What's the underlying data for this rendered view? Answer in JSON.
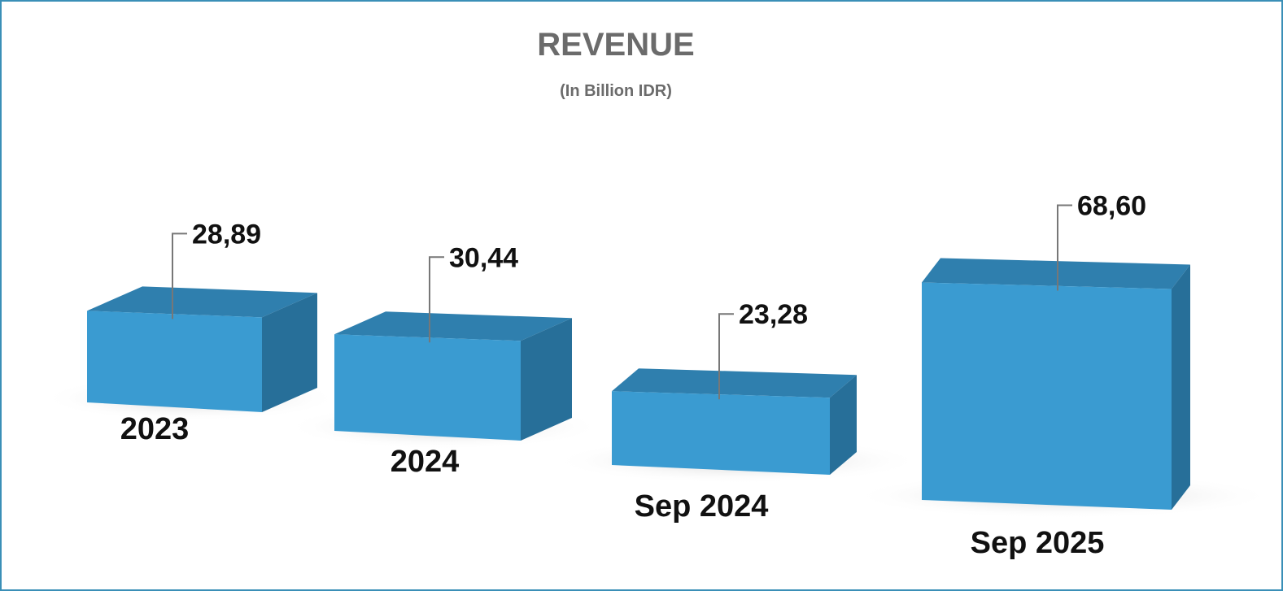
{
  "chart_data": {
    "type": "bar",
    "title": "REVENUE",
    "subtitle": "(In Billion IDR)",
    "categories": [
      "2023",
      "2024",
      "Sep 2024",
      "Sep 2025"
    ],
    "values": [
      28.89,
      30.44,
      23.28,
      68.6
    ],
    "value_labels": [
      "28,89",
      "30,44",
      "23,28",
      "68,60"
    ],
    "color": "#3a9bd1"
  }
}
